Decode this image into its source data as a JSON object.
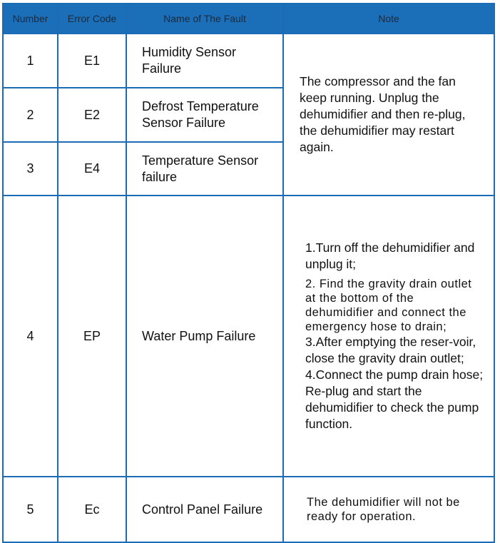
{
  "headers": {
    "number": "Number",
    "code": "Error Code",
    "name": "Name of The Fault",
    "note": "Note"
  },
  "rows": [
    {
      "number": "1",
      "code": "E1",
      "name": "Humidity Sensor Failure"
    },
    {
      "number": "2",
      "code": "E2",
      "name": "Defrost Temperature Sensor Failure"
    },
    {
      "number": "3",
      "code": "E4",
      "name": "Temperature Sensor failure"
    },
    {
      "number": "4",
      "code": "EP",
      "name": "Water Pump Failure"
    },
    {
      "number": "5",
      "code": "Ec",
      "name": "Control Panel Failure"
    }
  ],
  "notes": {
    "sensor": "The compressor and the fan keep running. Unplug the dehumidifier and then re-plug, the dehumidifier may restart again.",
    "pump": [
      "1.Turn off the dehumidifier and unplug it;",
      "2. Find the gravity drain outlet at the bottom of the dehumidifier and connect the emergency hose to drain;",
      "3.After emptying the reser-voir, close the gravity drain outlet;",
      "4.Connect the pump drain hose;",
      "Re-plug and start the dehumidifier to check the pump function."
    ],
    "panel": "The dehumidifier will not be ready for operation."
  },
  "colors": {
    "header": "#1b6eb8",
    "border": "#1b6cb5"
  }
}
